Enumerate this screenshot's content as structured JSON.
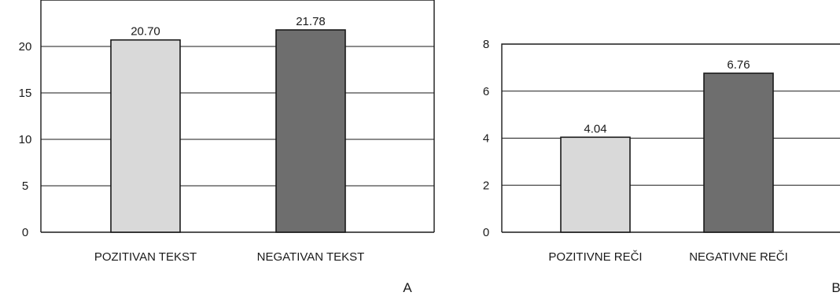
{
  "chart_data": [
    {
      "type": "bar",
      "panel_label": "A",
      "categories": [
        "POZITIVAN TEKST",
        "NEGATIVAN TEKST"
      ],
      "values": [
        20.7,
        21.78
      ],
      "value_labels": [
        "20.70",
        "21.78"
      ],
      "colors": [
        "#d9d9d9",
        "#6e6e6e"
      ],
      "yticks": [
        "0",
        "5",
        "10",
        "15",
        "20"
      ],
      "ytick_values": [
        0,
        5,
        10,
        15,
        20
      ],
      "ylim": [
        0,
        25
      ],
      "grid": true,
      "legend": "none"
    },
    {
      "type": "bar",
      "panel_label": "B",
      "categories": [
        "POZITIVNE REČI",
        "NEGATIVNE REČI"
      ],
      "values": [
        4.04,
        6.76
      ],
      "value_labels": [
        "4.04",
        "6.76"
      ],
      "colors": [
        "#d9d9d9",
        "#6e6e6e"
      ],
      "yticks": [
        "0",
        "2",
        "4",
        "6",
        "8"
      ],
      "ytick_values": [
        0,
        2,
        4,
        6,
        8
      ],
      "ylim": [
        0,
        8
      ],
      "grid": true,
      "legend": "none"
    }
  ]
}
